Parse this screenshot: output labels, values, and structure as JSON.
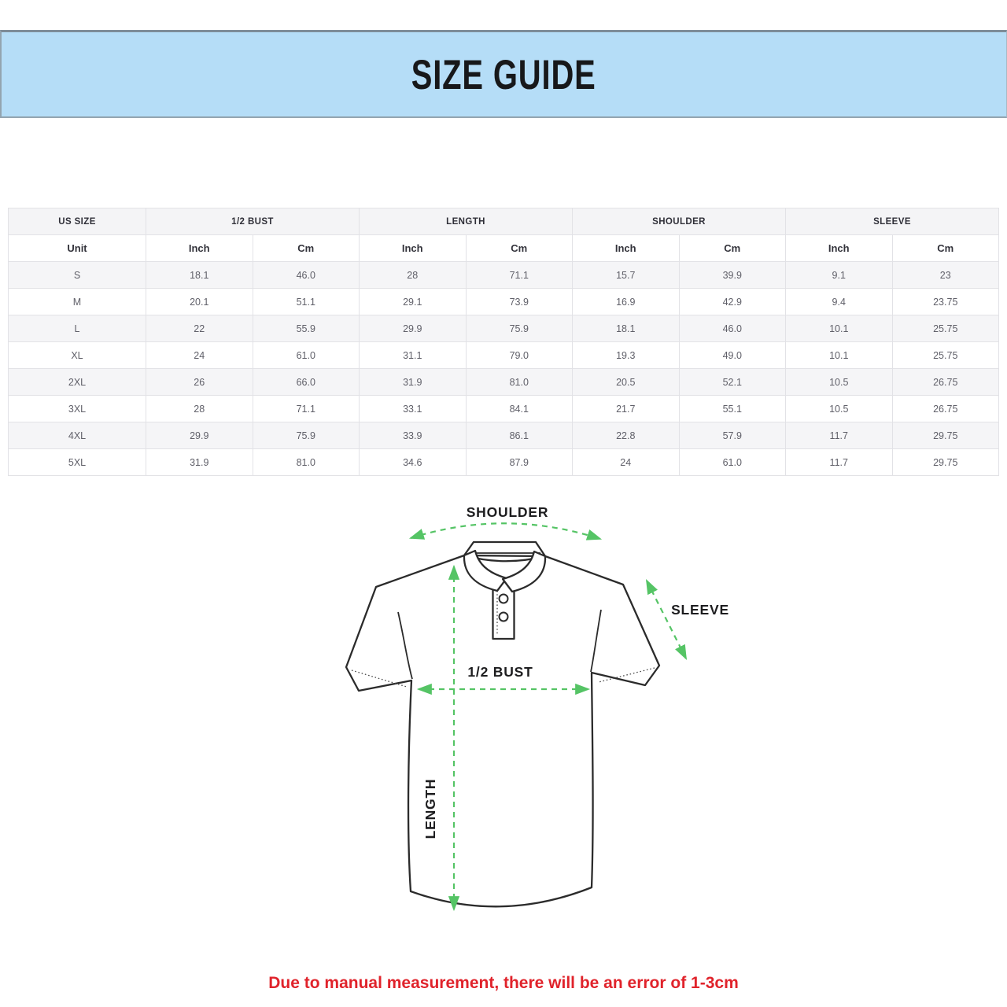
{
  "banner": {
    "title": "SIZE GUIDE",
    "bg_color": "#b5ddf7"
  },
  "table": {
    "groups": [
      {
        "label": "US SIZE"
      },
      {
        "label": "1/2 BUST"
      },
      {
        "label": "LENGTH"
      },
      {
        "label": "SHOULDER"
      },
      {
        "label": "SLEEVE"
      }
    ],
    "unit_label": "Unit",
    "inch": "Inch",
    "cm": "Cm",
    "rows": [
      {
        "size": "S",
        "values": [
          "18.1",
          "46.0",
          "28",
          "71.1",
          "15.7",
          "39.9",
          "9.1",
          "23"
        ]
      },
      {
        "size": "M",
        "values": [
          "20.1",
          "51.1",
          "29.1",
          "73.9",
          "16.9",
          "42.9",
          "9.4",
          "23.75"
        ]
      },
      {
        "size": "L",
        "values": [
          "22",
          "55.9",
          "29.9",
          "75.9",
          "18.1",
          "46.0",
          "10.1",
          "25.75"
        ]
      },
      {
        "size": "XL",
        "values": [
          "24",
          "61.0",
          "31.1",
          "79.0",
          "19.3",
          "49.0",
          "10.1",
          "25.75"
        ]
      },
      {
        "size": "2XL",
        "values": [
          "26",
          "66.0",
          "31.9",
          "81.0",
          "20.5",
          "52.1",
          "10.5",
          "26.75"
        ]
      },
      {
        "size": "3XL",
        "values": [
          "28",
          "71.1",
          "33.1",
          "84.1",
          "21.7",
          "55.1",
          "10.5",
          "26.75"
        ]
      },
      {
        "size": "4XL",
        "values": [
          "29.9",
          "75.9",
          "33.9",
          "86.1",
          "22.8",
          "57.9",
          "11.7",
          "29.75"
        ]
      },
      {
        "size": "5XL",
        "values": [
          "31.9",
          "81.0",
          "34.6",
          "87.9",
          "24",
          "61.0",
          "11.7",
          "29.75"
        ]
      }
    ]
  },
  "diagram": {
    "arrow_color": "#55c465",
    "labels": {
      "shoulder": "SHOULDER",
      "sleeve": "SLEEVE",
      "bust": "1/2 BUST",
      "length": "LENGTH"
    }
  },
  "note": {
    "text": "Due to manual measurement, there will be an error of 1-3cm",
    "color": "#e0232b"
  }
}
